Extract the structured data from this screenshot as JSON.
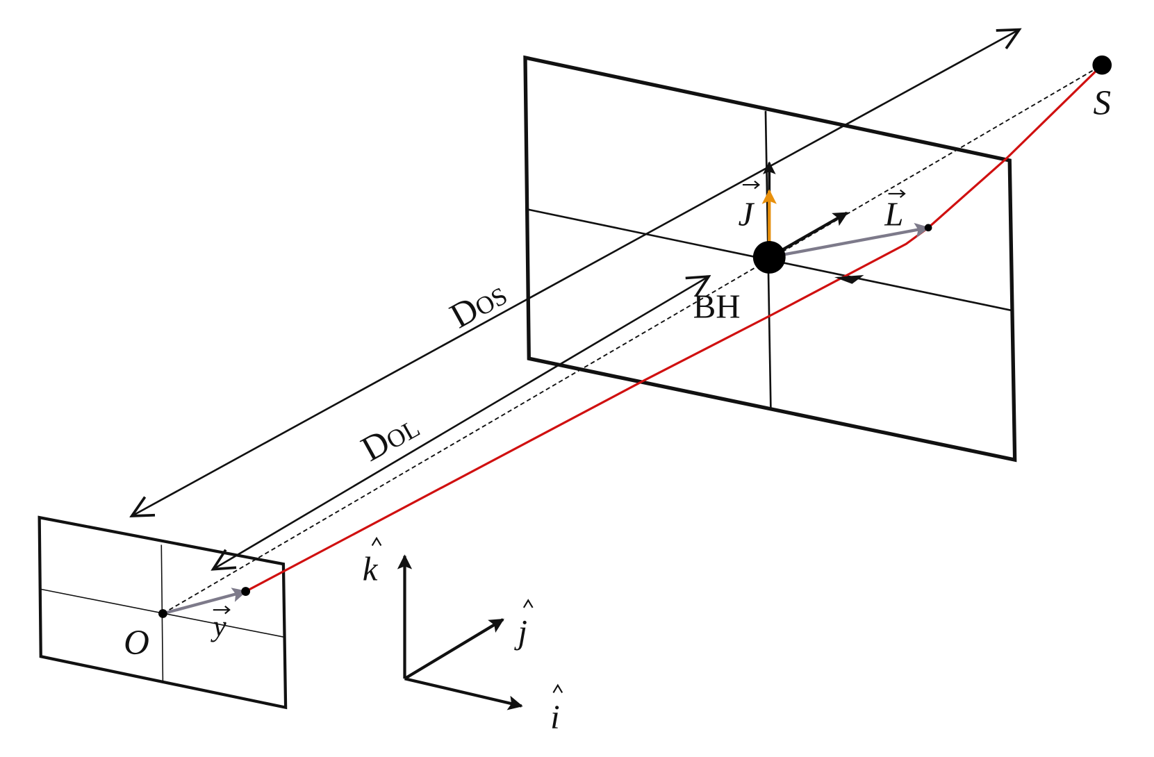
{
  "labels": {
    "source": "S",
    "observer": "O",
    "black_hole": "BH",
    "d_os": {
      "main": "D",
      "sub": "OS"
    },
    "d_ol": {
      "main": "D",
      "sub": "OL"
    },
    "spin": "J",
    "angular_momentum": "L",
    "image_position": "y",
    "axis_k": "k",
    "axis_j": "j",
    "axis_i": "i"
  }
}
